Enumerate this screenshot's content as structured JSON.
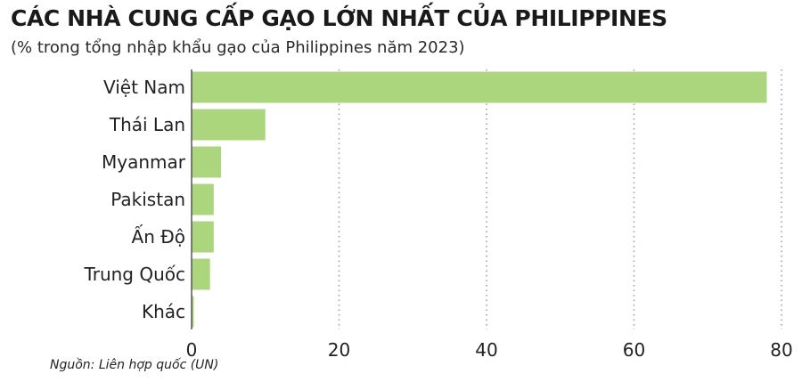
{
  "title": "CÁC NHÀ CUNG CẤP GẠO LỚN NHẤT CỦA PHILIPPINES",
  "subtitle": "(% trong tổng nhập khẩu gạo của Philippines năm 2023)",
  "source": "Nguồn: Liên hợp quốc (UN)",
  "colors": {
    "bar": "#acd67e",
    "grid": "#9a9a9a",
    "axis": "#555555"
  },
  "chart_data": {
    "type": "bar",
    "orientation": "horizontal",
    "categories": [
      "Việt Nam",
      "Thái Lan",
      "Myanmar",
      "Pakistan",
      "Ấn Độ",
      "Trung Quốc",
      "Khác"
    ],
    "values": [
      78,
      10,
      4,
      3,
      3,
      2.5,
      0.3
    ],
    "xlim": [
      0,
      80
    ],
    "xticks": [
      0,
      20,
      40,
      60,
      80
    ],
    "xlabel": "",
    "ylabel": "",
    "grid": "vertical-dotted",
    "legend": "none"
  }
}
